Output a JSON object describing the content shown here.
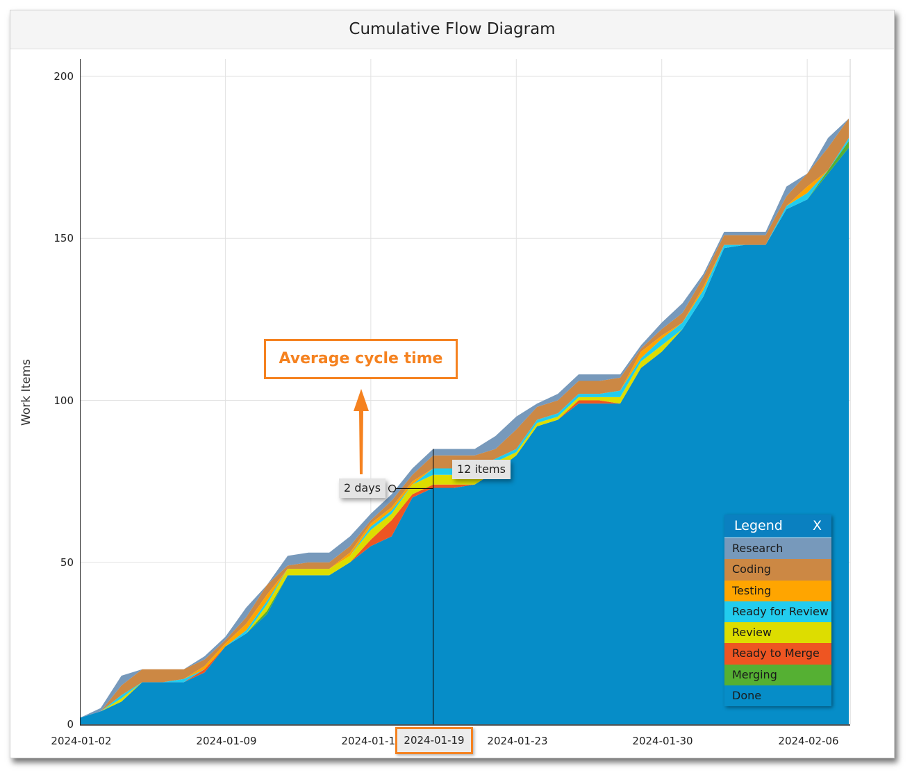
{
  "chart_data": {
    "type": "area",
    "stacked": true,
    "title": "Cumulative Flow Diagram",
    "xlabel": "",
    "ylabel": "Work Items",
    "ylim": [
      0,
      205
    ],
    "yticks": [
      0,
      50,
      100,
      150,
      200
    ],
    "x_start": "2024-01-02",
    "x_end": "2024-02-08",
    "xticks": [
      "2024-01-02",
      "2024-01-09",
      "2024-01-16",
      "2024-01-19",
      "2024-01-23",
      "2024-01-30",
      "2024-02-06"
    ],
    "grid": true,
    "legend_position": "bottom-right",
    "x": [
      "2024-01-02",
      "2024-01-03",
      "2024-01-04",
      "2024-01-05",
      "2024-01-06",
      "2024-01-07",
      "2024-01-08",
      "2024-01-09",
      "2024-01-10",
      "2024-01-11",
      "2024-01-12",
      "2024-01-13",
      "2024-01-14",
      "2024-01-15",
      "2024-01-16",
      "2024-01-17",
      "2024-01-18",
      "2024-01-19",
      "2024-01-20",
      "2024-01-21",
      "2024-01-22",
      "2024-01-23",
      "2024-01-24",
      "2024-01-25",
      "2024-01-26",
      "2024-01-27",
      "2024-01-28",
      "2024-01-29",
      "2024-01-30",
      "2024-01-31",
      "2024-02-01",
      "2024-02-02",
      "2024-02-03",
      "2024-02-04",
      "2024-02-05",
      "2024-02-06",
      "2024-02-07",
      "2024-02-08"
    ],
    "series": [
      {
        "name": "Done",
        "color": "#068dc8",
        "values": [
          2,
          4,
          7,
          13,
          13,
          13,
          16,
          24,
          28,
          34,
          46,
          46,
          46,
          50,
          55,
          58,
          70,
          73,
          73,
          74,
          78,
          83,
          92,
          94,
          99,
          99,
          99,
          110,
          115,
          122,
          132,
          147,
          148,
          148,
          159,
          162,
          170,
          178
        ]
      },
      {
        "name": "Merging",
        "color": "#55b033",
        "values": [
          0,
          0,
          0,
          0,
          0,
          0,
          0,
          0,
          0,
          1,
          0,
          0,
          0,
          0,
          0,
          0,
          0,
          0,
          0,
          0,
          0,
          0,
          0,
          0,
          0,
          0,
          0,
          0,
          0,
          0,
          0,
          0,
          0,
          0,
          0,
          0,
          1,
          2
        ]
      },
      {
        "name": "Ready to Merge",
        "color": "#ee5522",
        "values": [
          0,
          0,
          0,
          0,
          0,
          0,
          1,
          0,
          0,
          0,
          0,
          0,
          0,
          0,
          2,
          5,
          1,
          1,
          1,
          0,
          0,
          0,
          0,
          0,
          1,
          1,
          0,
          0,
          0,
          0,
          0,
          0,
          0,
          0,
          0,
          0,
          0,
          0
        ]
      },
      {
        "name": "Review",
        "color": "#dddd00",
        "values": [
          0,
          0,
          1,
          0,
          0,
          0,
          0,
          0,
          0,
          2,
          2,
          2,
          2,
          2,
          3,
          2,
          3,
          3,
          3,
          3,
          3,
          1,
          1,
          1,
          1,
          1,
          2,
          2,
          2,
          0,
          0,
          0,
          0,
          0,
          0,
          0,
          0,
          0
        ]
      },
      {
        "name": "Ready for Review",
        "color": "#22ccee",
        "values": [
          0,
          0,
          1,
          0,
          0,
          1,
          0,
          0,
          1,
          1,
          0,
          0,
          0,
          0,
          1,
          1,
          0,
          2,
          2,
          2,
          1,
          1,
          1,
          1,
          1,
          1,
          2,
          1,
          2,
          2,
          2,
          1,
          0,
          0,
          1,
          2,
          0,
          1
        ]
      },
      {
        "name": "Testing",
        "color": "#ffa500",
        "values": [
          0,
          0,
          0,
          0,
          0,
          0,
          1,
          1,
          2,
          2,
          0,
          0,
          0,
          1,
          1,
          1,
          1,
          0,
          0,
          0,
          0,
          0,
          0,
          0,
          0,
          0,
          0,
          2,
          1,
          0,
          1,
          0,
          0,
          0,
          0,
          2,
          0,
          0
        ]
      },
      {
        "name": "Coding",
        "color": "#cc8844",
        "values": [
          0,
          0,
          3,
          4,
          4,
          3,
          2,
          1,
          2,
          3,
          1,
          2,
          2,
          2,
          1,
          2,
          2,
          4,
          4,
          4,
          3,
          6,
          4,
          4,
          4,
          4,
          4,
          1,
          2,
          3,
          3,
          3,
          3,
          3,
          3,
          4,
          7,
          6
        ]
      },
      {
        "name": "Research",
        "color": "#7799bb",
        "values": [
          0,
          1,
          3,
          0,
          0,
          0,
          1,
          1,
          3,
          0,
          3,
          3,
          3,
          3,
          2,
          2,
          2,
          2,
          2,
          2,
          4,
          4,
          1,
          2,
          2,
          2,
          1,
          1,
          2,
          3,
          1,
          1,
          1,
          1,
          3,
          0,
          3,
          0
        ]
      }
    ],
    "annotations": {
      "callout": "Average cycle time",
      "cycle_time_label": "2 days",
      "wip_label": "12 items",
      "highlight_date": "2024-01-19"
    }
  },
  "legend": {
    "title": "Legend",
    "close_label": "X",
    "items": [
      "Research",
      "Coding",
      "Testing",
      "Ready for Review",
      "Review",
      "Ready to Merge",
      "Merging",
      "Done"
    ]
  },
  "accent_color": "#f58220"
}
